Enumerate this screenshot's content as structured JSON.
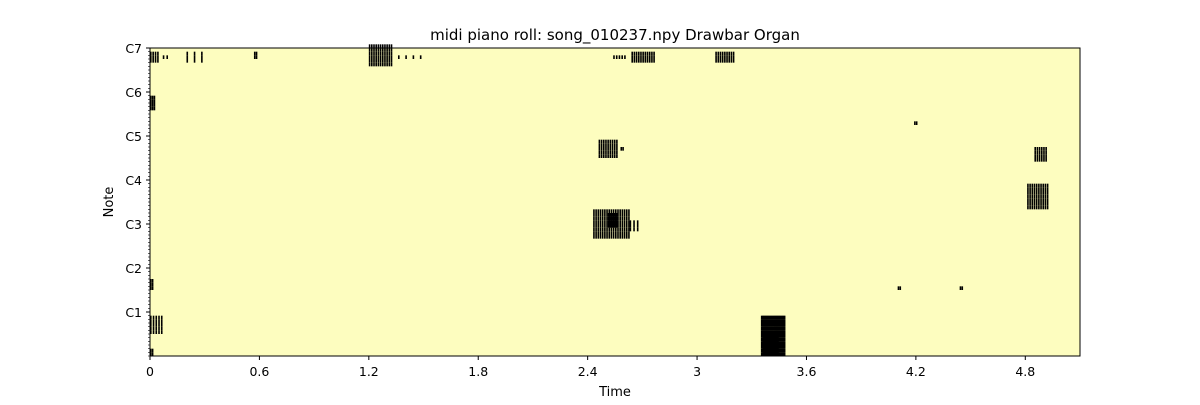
{
  "chart_data": {
    "type": "heatmap",
    "title": "midi piano roll: song_010237.npy Drawbar Organ",
    "xlabel": "Time",
    "ylabel": "Note",
    "xlim": [
      0,
      5.1
    ],
    "ylim": [
      0,
      84
    ],
    "x_ticks": [
      {
        "value": 0,
        "label": "0"
      },
      {
        "value": 0.6,
        "label": "0.6"
      },
      {
        "value": 1.2,
        "label": "1.2"
      },
      {
        "value": 1.8,
        "label": "1.8"
      },
      {
        "value": 2.4,
        "label": "2.4"
      },
      {
        "value": 3.0,
        "label": "3"
      },
      {
        "value": 3.6,
        "label": "3.6"
      },
      {
        "value": 4.2,
        "label": "4.2"
      },
      {
        "value": 4.8,
        "label": "4.8"
      }
    ],
    "y_ticks": [
      {
        "value": 12,
        "label": "C1"
      },
      {
        "value": 24,
        "label": "C2"
      },
      {
        "value": 36,
        "label": "C3"
      },
      {
        "value": 48,
        "label": "C4"
      },
      {
        "value": 60,
        "label": "C5"
      },
      {
        "value": 72,
        "label": "C6"
      },
      {
        "value": 84,
        "label": "C7"
      }
    ],
    "grid": false,
    "background_color": "#fdfdbf",
    "note_color": "#000000",
    "clusters": [
      {
        "x": [
          0.0,
          0.05
        ],
        "notes": [
          80,
          82
        ],
        "step": 0.013
      },
      {
        "x": [
          0.07,
          0.09
        ],
        "notes": [
          81,
          81
        ],
        "step": 0.02
      },
      {
        "x": [
          0.2,
          0.3
        ],
        "notes": [
          80,
          82
        ],
        "step": 0.04
      },
      {
        "x": [
          0.57,
          0.58
        ],
        "notes": [
          81,
          82
        ],
        "step": 0.01
      },
      {
        "x": [
          1.2,
          1.33
        ],
        "notes": [
          79,
          84
        ],
        "step": 0.012
      },
      {
        "x": [
          1.36,
          1.5
        ],
        "notes": [
          81,
          81
        ],
        "step": 0.04
      },
      {
        "x": [
          2.54,
          2.6
        ],
        "notes": [
          81,
          81
        ],
        "step": 0.015
      },
      {
        "x": [
          2.64,
          2.77
        ],
        "notes": [
          80,
          82
        ],
        "step": 0.012
      },
      {
        "x": [
          3.1,
          3.2
        ],
        "notes": [
          80,
          82
        ],
        "step": 0.012
      },
      {
        "x": [
          0.0,
          0.02
        ],
        "notes": [
          67,
          70
        ],
        "step": 0.01
      },
      {
        "x": [
          2.46,
          2.56
        ],
        "notes": [
          54,
          58
        ],
        "step": 0.012
      },
      {
        "x": [
          2.58,
          2.59
        ],
        "notes": [
          56,
          56
        ],
        "step": 0.01
      },
      {
        "x": [
          4.19,
          4.2
        ],
        "notes": [
          63,
          63
        ],
        "step": 0.01
      },
      {
        "x": [
          4.85,
          4.92
        ],
        "notes": [
          53,
          56
        ],
        "step": 0.012
      },
      {
        "x": [
          4.81,
          4.92
        ],
        "notes": [
          40,
          46
        ],
        "step": 0.012
      },
      {
        "x": [
          2.43,
          2.63
        ],
        "notes": [
          32,
          39
        ],
        "step": 0.012
      },
      {
        "x": [
          2.51,
          2.56
        ],
        "notes": [
          35,
          38
        ],
        "step": 0.006
      },
      {
        "x": [
          2.63,
          2.68
        ],
        "notes": [
          34,
          36
        ],
        "step": 0.02
      },
      {
        "x": [
          0.0,
          0.01
        ],
        "notes": [
          18,
          20
        ],
        "step": 0.01
      },
      {
        "x": [
          4.1,
          4.11
        ],
        "notes": [
          18,
          18
        ],
        "step": 0.01
      },
      {
        "x": [
          4.44,
          4.45
        ],
        "notes": [
          18,
          18
        ],
        "step": 0.01
      },
      {
        "x": [
          0.0,
          0.06
        ],
        "notes": [
          6,
          10
        ],
        "step": 0.015
      },
      {
        "x": [
          0.0,
          0.01
        ],
        "notes": [
          0,
          1
        ],
        "step": 0.01
      },
      {
        "x": [
          3.35,
          3.48
        ],
        "notes": [
          0,
          10
        ],
        "step": 0.006
      },
      {
        "x": [
          3.36,
          3.44
        ],
        "notes": [
          0,
          5
        ],
        "step": 0.004
      }
    ]
  }
}
